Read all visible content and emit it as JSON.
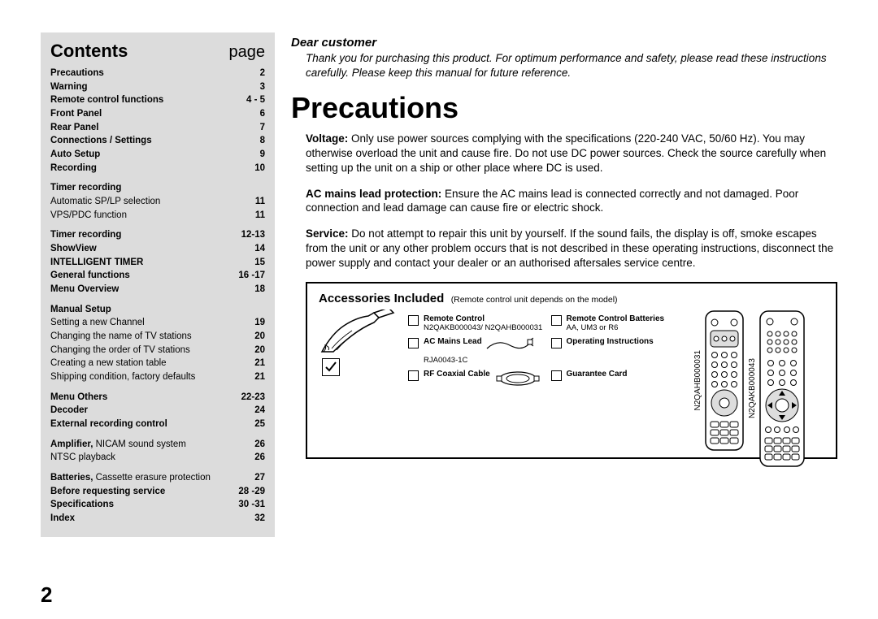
{
  "sidebar": {
    "title": "Contents",
    "page_label": "page",
    "rows": [
      {
        "label": "Precautions",
        "pg": "2",
        "bold": true
      },
      {
        "label": "Warning",
        "pg": "3",
        "bold": true
      },
      {
        "label": "Remote control functions",
        "pg": "4 - 5",
        "bold": true
      },
      {
        "label": "Front Panel",
        "pg": "6",
        "bold": true
      },
      {
        "label": "Rear Panel",
        "pg": "7",
        "bold": true
      },
      {
        "label": "Connections / Settings",
        "pg": "8",
        "bold": true
      },
      {
        "label": "Auto Setup",
        "pg": "9",
        "bold": true
      },
      {
        "label": "Recording",
        "pg": "10",
        "bold": true
      },
      {
        "gap": true
      },
      {
        "label": "Timer recording",
        "pg": "",
        "bold": true
      },
      {
        "label": "Automatic SP/LP selection",
        "pg": "11",
        "bold": false
      },
      {
        "label": "VPS/PDC function",
        "pg": "11",
        "bold": false
      },
      {
        "gap": true
      },
      {
        "label": "Timer recording",
        "pg": "12-13",
        "bold": true
      },
      {
        "label": "ShowView",
        "pg": "14",
        "bold": true
      },
      {
        "label": "INTELLIGENT TIMER",
        "pg": "15",
        "bold": true
      },
      {
        "label": "General functions",
        "pg": "16 -17",
        "bold": true
      },
      {
        "label": "Menu Overview",
        "pg": "18",
        "bold": true
      },
      {
        "gap": true
      },
      {
        "label": "Manual Setup",
        "pg": "",
        "bold": true
      },
      {
        "label": "Setting a new Channel",
        "pg": "19",
        "bold": false
      },
      {
        "label": "Changing the name of TV stations",
        "pg": "20",
        "bold": false
      },
      {
        "label": "Changing the order of TV stations",
        "pg": "20",
        "bold": false
      },
      {
        "label": "Creating a new station table",
        "pg": "21",
        "bold": false
      },
      {
        "label": "Shipping condition, factory defaults",
        "pg": "21",
        "bold": false
      },
      {
        "gap": true
      },
      {
        "label": "Menu Others",
        "pg": "22-23",
        "bold": true
      },
      {
        "label": "Decoder",
        "pg": "24",
        "bold": true
      },
      {
        "label": "External recording control",
        "pg": "25",
        "bold": true
      },
      {
        "gap": true
      },
      {
        "label_html": "<b>Amplifier,</b> NICAM sound system",
        "pg": "26",
        "bold": false
      },
      {
        "label": "NTSC playback",
        "pg": "26",
        "bold": false
      },
      {
        "gap": true
      },
      {
        "label_html": "<b>Batteries,</b> Cassette erasure protection",
        "pg": "27",
        "bold": false
      },
      {
        "label": "Before requesting service",
        "pg": "28 -29",
        "bold": true
      },
      {
        "label": "Specifications",
        "pg": "30 -31",
        "bold": true
      },
      {
        "label": "Index",
        "pg": "32",
        "bold": true
      }
    ]
  },
  "main": {
    "dear_title": "Dear customer",
    "dear_body": "Thank you for purchasing this product. For optimum performance and safety, please read these instructions carefully. Please keep this manual for future reference.",
    "heading": "Precautions",
    "paras": [
      {
        "lead": "Voltage:",
        "body": " Only use power sources complying with the specifications (220-240 VAC, 50/60 Hz). You may otherwise overload the unit and cause fire. Do not use DC power sources. Check the source carefully when setting up the unit on a ship or other place where DC is used."
      },
      {
        "lead": "AC mains lead protection:",
        "body": " Ensure the AC mains lead is connected correctly and not damaged. Poor connection and lead damage can cause fire or electric shock."
      },
      {
        "lead": "Service:",
        "body": " Do not attempt to repair this unit by yourself. If the sound fails, the display is off, smoke escapes from the unit or any other problem occurs that is not described in these operating instructions, disconnect the power supply and contact your dealer or an authorised aftersales service centre."
      }
    ]
  },
  "acc": {
    "title": "Accessories Included",
    "sub": "(Remote control unit depends on the model)",
    "items": [
      {
        "title": "Remote Control",
        "sub": "N2QAKB000043/ N2QAHB000031"
      },
      {
        "title": "Remote Control Batteries",
        "sub": "AA, UM3 or R6"
      },
      {
        "title": "AC Mains Lead",
        "sub": "RJA0043-1C"
      },
      {
        "title": "Operating Instructions",
        "sub": ""
      },
      {
        "title": "RF Coaxial Cable",
        "sub": ""
      },
      {
        "title": "Guarantee Card",
        "sub": ""
      }
    ],
    "remote_labels": [
      "N2QAHB000031",
      "N2QAKB000043"
    ]
  },
  "page_number": "2",
  "colors": {
    "bg": "#ffffff",
    "sidebar_bg": "#dcdcdc",
    "text": "#000000"
  }
}
